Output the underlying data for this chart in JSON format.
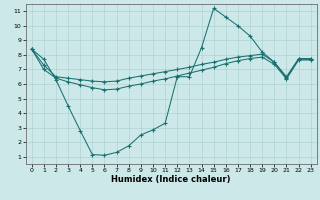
{
  "xlabel": "Humidex (Indice chaleur)",
  "bg_color": "#cce8e8",
  "grid_color": "#aacccc",
  "line_color": "#1a7070",
  "xlim": [
    -0.5,
    23.5
  ],
  "ylim": [
    0.5,
    11.5
  ],
  "xticks": [
    0,
    1,
    2,
    3,
    4,
    5,
    6,
    7,
    8,
    9,
    10,
    11,
    12,
    13,
    14,
    15,
    16,
    17,
    18,
    19,
    20,
    21,
    22,
    23
  ],
  "yticks": [
    1,
    2,
    3,
    4,
    5,
    6,
    7,
    8,
    9,
    10,
    11
  ],
  "line1_x": [
    0,
    1,
    2,
    3,
    4,
    5,
    6,
    7,
    8,
    9,
    10,
    11,
    12,
    13,
    14,
    15,
    16,
    17,
    18,
    19,
    20,
    21,
    22,
    23
  ],
  "line1_y": [
    8.4,
    7.7,
    6.3,
    4.5,
    2.8,
    1.15,
    1.1,
    1.3,
    1.75,
    2.5,
    2.85,
    3.3,
    6.5,
    6.5,
    8.5,
    11.2,
    10.6,
    10.0,
    9.3,
    8.2,
    7.5,
    6.4,
    7.7,
    7.7
  ],
  "line2_x": [
    0,
    1,
    2,
    3,
    4,
    5,
    6,
    7,
    8,
    9,
    10,
    11,
    12,
    13,
    14,
    15,
    16,
    17,
    18,
    19,
    20,
    21,
    22,
    23
  ],
  "line2_y": [
    8.4,
    7.3,
    6.5,
    6.4,
    6.3,
    6.2,
    6.15,
    6.2,
    6.4,
    6.55,
    6.7,
    6.85,
    7.0,
    7.15,
    7.35,
    7.5,
    7.7,
    7.85,
    7.95,
    8.05,
    7.5,
    6.5,
    7.75,
    7.75
  ],
  "line3_x": [
    0,
    1,
    2,
    3,
    4,
    5,
    6,
    7,
    8,
    9,
    10,
    11,
    12,
    13,
    14,
    15,
    16,
    17,
    18,
    19,
    20,
    21,
    22,
    23
  ],
  "line3_y": [
    8.4,
    7.0,
    6.4,
    6.15,
    5.95,
    5.75,
    5.6,
    5.65,
    5.85,
    6.0,
    6.2,
    6.35,
    6.55,
    6.75,
    6.95,
    7.15,
    7.4,
    7.6,
    7.75,
    7.85,
    7.35,
    6.35,
    7.65,
    7.65
  ]
}
